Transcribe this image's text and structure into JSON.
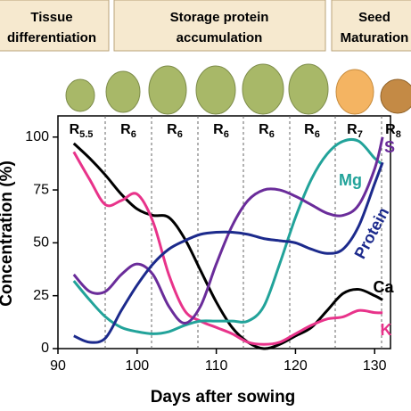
{
  "chart_data": {
    "type": "line",
    "phases": [
      [
        "Tissue",
        "differentiation"
      ],
      [
        "Storage protein",
        "accumulation"
      ],
      [
        "Seed",
        "Maturation"
      ]
    ],
    "stages": [
      {
        "main": "R",
        "sub": "5.5"
      },
      {
        "main": "R",
        "sub": "6"
      },
      {
        "main": "R",
        "sub": "6"
      },
      {
        "main": "R",
        "sub": "6"
      },
      {
        "main": "R",
        "sub": "6"
      },
      {
        "main": "R",
        "sub": "6"
      },
      {
        "main": "R",
        "sub": "7"
      },
      {
        "main": "R",
        "sub": "8"
      }
    ],
    "x_label": "Days after sowing",
    "y_label": "Concentration (%)",
    "x": [
      92,
      94,
      96,
      98,
      100,
      102,
      104,
      106,
      108,
      110,
      112,
      114,
      116,
      118,
      120,
      122,
      124,
      126,
      128,
      130,
      131
    ],
    "series": [
      {
        "name": "Ca",
        "color": "#000000",
        "values": [
          97,
          90,
          82,
          73,
          66,
          63,
          62,
          52,
          37,
          22,
          10,
          3,
          0,
          2,
          6,
          10,
          18,
          26,
          28,
          25,
          23
        ]
      },
      {
        "name": "K",
        "color": "#e8338a",
        "values": [
          93,
          80,
          68,
          70,
          73,
          60,
          35,
          18,
          13,
          10,
          7,
          3,
          2,
          3,
          7,
          11,
          14,
          15,
          18,
          17,
          17
        ]
      },
      {
        "name": "Mg",
        "color": "#22a39a",
        "values": [
          32,
          23,
          15,
          10,
          8,
          7,
          8,
          11,
          13,
          13,
          13,
          13,
          20,
          40,
          62,
          80,
          92,
          98,
          98,
          90,
          87
        ]
      },
      {
        "name": "S",
        "color": "#6a2c9a",
        "values": [
          35,
          27,
          27,
          35,
          40,
          35,
          20,
          12,
          20,
          40,
          58,
          70,
          75,
          75,
          72,
          68,
          64,
          63,
          68,
          85,
          100
        ]
      },
      {
        "name": "Protein",
        "color": "#1c2a8c",
        "values": [
          6,
          3,
          5,
          18,
          30,
          40,
          47,
          51,
          54,
          55,
          55,
          54,
          52,
          51,
          50,
          47,
          45,
          47,
          58,
          78,
          88
        ]
      }
    ],
    "xlim": [
      90,
      132
    ],
    "ylim": [
      0,
      110
    ],
    "xticks": [
      90,
      100,
      110,
      120,
      130
    ],
    "yticks": [
      0,
      25,
      50,
      75,
      100
    ]
  }
}
